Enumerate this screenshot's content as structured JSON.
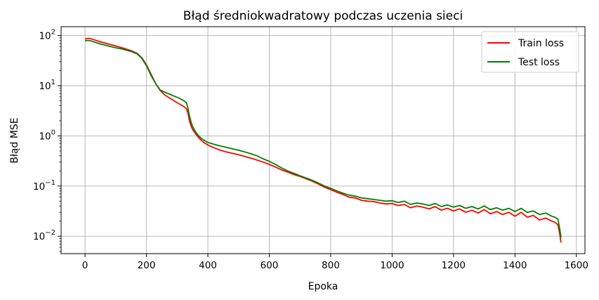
{
  "chart_data": {
    "type": "line",
    "title": "Błąd średniokwadratowy podczas uczenia sieci",
    "xlabel": "Epoka",
    "ylabel": "Błąd MSE",
    "y_scale": "log",
    "xlim": [
      -78,
      1628
    ],
    "ylim": [
      0.0045,
      150
    ],
    "grid": true,
    "legend_position": "top-right",
    "x_ticks": [
      0,
      200,
      400,
      600,
      800,
      1000,
      1200,
      1400,
      1600
    ],
    "x_tick_labels": [
      "0",
      "200",
      "400",
      "600",
      "800",
      "1000",
      "1200",
      "1400",
      "1600"
    ],
    "y_ticks": [
      0.01,
      0.1,
      1,
      10,
      100
    ],
    "y_tick_labels": [
      {
        "base": "10",
        "exp": "−2"
      },
      {
        "base": "10",
        "exp": "−1"
      },
      {
        "base": "10",
        "exp": "0"
      },
      {
        "base": "10",
        "exp": "1"
      },
      {
        "base": "10",
        "exp": "2"
      }
    ],
    "series": [
      {
        "name": "Train loss",
        "color": "#ff0000",
        "x": [
          0,
          10,
          20,
          30,
          50,
          75,
          100,
          125,
          150,
          170,
          185,
          200,
          215,
          230,
          245,
          260,
          275,
          290,
          305,
          320,
          330,
          335,
          340,
          345,
          350,
          360,
          370,
          380,
          390,
          400,
          420,
          440,
          460,
          480,
          500,
          520,
          540,
          560,
          580,
          600,
          620,
          640,
          660,
          680,
          700,
          720,
          740,
          760,
          780,
          800,
          820,
          840,
          860,
          880,
          900,
          920,
          940,
          960,
          980,
          1000,
          1020,
          1040,
          1060,
          1080,
          1100,
          1120,
          1140,
          1160,
          1180,
          1200,
          1220,
          1240,
          1260,
          1280,
          1300,
          1320,
          1340,
          1360,
          1380,
          1400,
          1420,
          1440,
          1460,
          1480,
          1500,
          1520,
          1530,
          1540,
          1545,
          1550
        ],
        "values": [
          85,
          88,
          86,
          82,
          75,
          68,
          62,
          56,
          50,
          44,
          36,
          26,
          17,
          11,
          8,
          6.5,
          5.7,
          5.0,
          4.4,
          3.9,
          3.5,
          2.9,
          2.0,
          1.6,
          1.35,
          1.1,
          0.92,
          0.8,
          0.72,
          0.66,
          0.58,
          0.52,
          0.48,
          0.45,
          0.42,
          0.39,
          0.36,
          0.33,
          0.3,
          0.27,
          0.24,
          0.21,
          0.19,
          0.17,
          0.155,
          0.14,
          0.125,
          0.11,
          0.095,
          0.085,
          0.075,
          0.068,
          0.06,
          0.058,
          0.052,
          0.05,
          0.049,
          0.046,
          0.044,
          0.045,
          0.041,
          0.043,
          0.037,
          0.04,
          0.038,
          0.035,
          0.039,
          0.033,
          0.036,
          0.032,
          0.035,
          0.03,
          0.033,
          0.029,
          0.034,
          0.028,
          0.031,
          0.027,
          0.03,
          0.025,
          0.03,
          0.024,
          0.026,
          0.021,
          0.023,
          0.02,
          0.019,
          0.017,
          0.012,
          0.0075
        ]
      },
      {
        "name": "Test loss",
        "color": "#008000",
        "x": [
          0,
          10,
          20,
          30,
          50,
          75,
          100,
          125,
          150,
          170,
          185,
          200,
          215,
          230,
          245,
          260,
          275,
          290,
          305,
          320,
          330,
          335,
          340,
          345,
          350,
          360,
          370,
          380,
          390,
          400,
          420,
          440,
          460,
          480,
          500,
          520,
          540,
          560,
          580,
          600,
          620,
          640,
          660,
          680,
          700,
          720,
          740,
          760,
          780,
          800,
          820,
          840,
          860,
          880,
          900,
          920,
          940,
          960,
          980,
          1000,
          1020,
          1040,
          1060,
          1080,
          1100,
          1120,
          1140,
          1160,
          1180,
          1200,
          1220,
          1240,
          1260,
          1280,
          1300,
          1320,
          1340,
          1360,
          1380,
          1400,
          1420,
          1440,
          1460,
          1480,
          1500,
          1520,
          1530,
          1540,
          1545,
          1550
        ],
        "values": [
          78,
          80,
          78,
          74,
          68,
          62,
          57,
          53,
          48,
          43,
          35,
          25,
          16,
          11,
          8.2,
          7.4,
          6.8,
          6.2,
          5.7,
          5.1,
          4.6,
          3.6,
          2.5,
          1.9,
          1.55,
          1.2,
          1.0,
          0.88,
          0.8,
          0.74,
          0.68,
          0.63,
          0.59,
          0.55,
          0.52,
          0.48,
          0.44,
          0.4,
          0.35,
          0.31,
          0.27,
          0.23,
          0.2,
          0.18,
          0.16,
          0.145,
          0.13,
          0.115,
          0.1,
          0.09,
          0.08,
          0.072,
          0.066,
          0.063,
          0.058,
          0.056,
          0.054,
          0.052,
          0.05,
          0.051,
          0.047,
          0.05,
          0.043,
          0.046,
          0.044,
          0.041,
          0.045,
          0.039,
          0.042,
          0.038,
          0.041,
          0.036,
          0.039,
          0.035,
          0.04,
          0.034,
          0.037,
          0.033,
          0.036,
          0.031,
          0.036,
          0.03,
          0.032,
          0.027,
          0.029,
          0.025,
          0.024,
          0.022,
          0.015,
          0.0095
        ]
      }
    ]
  }
}
